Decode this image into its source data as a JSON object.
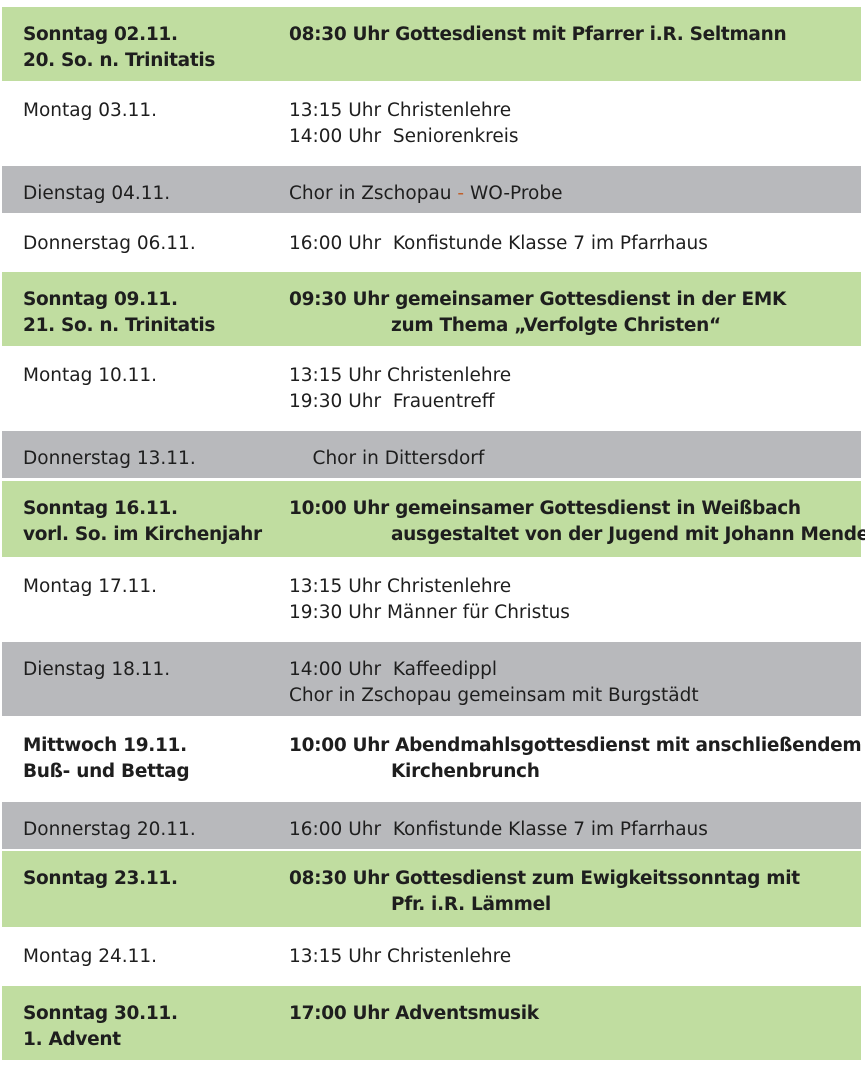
{
  "colors": {
    "sunday": "#c0dda0",
    "gray": "#b8b9bc",
    "white": "#ffffff",
    "dash": "#c0602a"
  },
  "rows": [
    {
      "style": "green",
      "bold": true,
      "day": [
        "Sonntag 02.11.",
        "20. So. n. Trinitatis"
      ],
      "events": [
        "08:30 Uhr Gottesdienst mit Pfarrer i.R. Seltmann"
      ]
    },
    {
      "style": "white",
      "bold": false,
      "day": [
        "Montag 03.11."
      ],
      "events": [
        "13:15 Uhr Christenlehre",
        "14:00 Uhr  Seniorenkreis"
      ]
    },
    {
      "style": "gray",
      "bold": false,
      "day": [
        "Dienstag 04.11."
      ],
      "events": [
        "Chor in Zschopau - WO-Probe"
      ]
    },
    {
      "style": "white",
      "bold": false,
      "day": [
        "Donnerstag 06.11."
      ],
      "events": [
        "16:00 Uhr  Konfistunde Klasse 7 im Pfarrhaus"
      ]
    },
    {
      "style": "green",
      "bold": true,
      "day": [
        "Sonntag 09.11.",
        "21. So. n. Trinitatis"
      ],
      "events": [
        "09:30 Uhr gemeinsamer Gottesdienst in der EMK",
        "zum Thema „Verfolgte Christen“"
      ]
    },
    {
      "style": "white",
      "bold": false,
      "day": [
        "Montag 10.11."
      ],
      "events": [
        "13:15 Uhr Christenlehre",
        "19:30 Uhr  Frauentreff"
      ]
    },
    {
      "style": "gray",
      "bold": false,
      "day": [
        "Donnerstag 13.11."
      ],
      "events": [
        "    Chor in Dittersdorf"
      ]
    },
    {
      "style": "green",
      "bold": true,
      "day": [
        "Sonntag 16.11.",
        "vorl. So. im Kirchenjahr"
      ],
      "events": [
        "10:00 Uhr gemeinsamer Gottesdienst in Weißbach",
        "ausgestaltet von der Jugend mit Johann Mende"
      ]
    },
    {
      "style": "white",
      "bold": false,
      "day": [
        "Montag 17.11."
      ],
      "events": [
        "13:15 Uhr Christenlehre",
        "19:30 Uhr Männer für Christus"
      ]
    },
    {
      "style": "gray",
      "bold": false,
      "day": [
        "Dienstag 18.11."
      ],
      "events": [
        "14:00 Uhr  Kaffeedippl",
        "Chor in Zschopau gemeinsam mit Burgstädt"
      ]
    },
    {
      "style": "white",
      "bold": true,
      "day": [
        "Mittwoch 19.11.",
        "Buß- und Bettag"
      ],
      "events": [
        "10:00 Uhr Abendmahlsgottesdienst mit anschließendem",
        "Kirchenbrunch"
      ]
    },
    {
      "style": "gray",
      "bold": false,
      "day": [
        "Donnerstag 20.11."
      ],
      "events": [
        "16:00 Uhr  Konfistunde Klasse 7 im Pfarrhaus"
      ]
    },
    {
      "style": "green",
      "bold": true,
      "day": [
        "Sonntag 23.11."
      ],
      "events": [
        "08:30 Uhr Gottesdienst zum Ewigkeitssonntag mit",
        "Pfr. i.R. Lämmel"
      ]
    },
    {
      "style": "white",
      "bold": false,
      "day": [
        "Montag 24.11."
      ],
      "events": [
        "13:15 Uhr Christenlehre"
      ]
    },
    {
      "style": "green",
      "bold": true,
      "day": [
        "Sonntag 30.11.",
        "1. Advent"
      ],
      "events": [
        "17:00 Uhr Adventsmusik"
      ]
    }
  ]
}
